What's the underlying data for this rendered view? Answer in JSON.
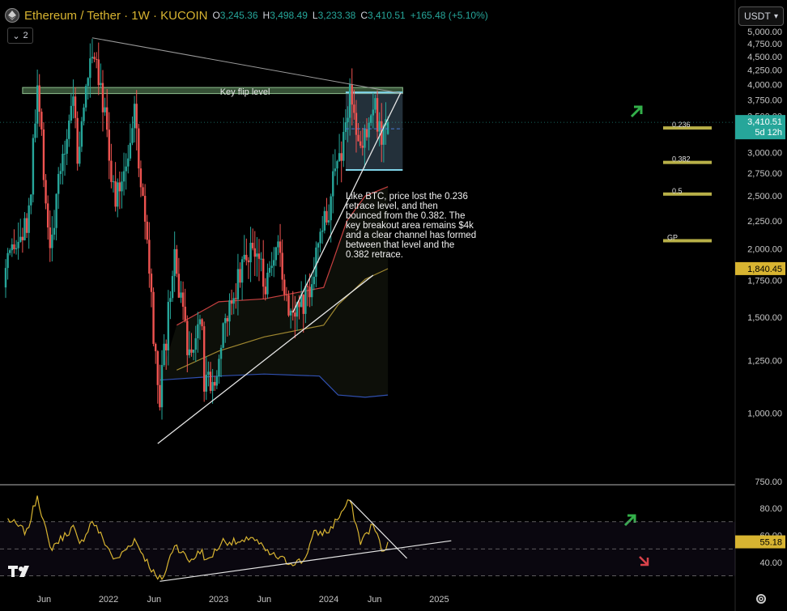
{
  "header": {
    "title": "Ethereum / Tether · 1W · KUCOIN",
    "open_label": "O",
    "open": "3,245.36",
    "high_label": "H",
    "high": "3,498.49",
    "low_label": "L",
    "low": "3,233.38",
    "close_label": "C",
    "close": "3,410.51",
    "change": "+165.48 (+5.10%)",
    "collapse_count": "2",
    "logo_icon": "ethereum-logo-icon"
  },
  "quote_selector": {
    "label": "USDT",
    "icon": "chevron-down-icon"
  },
  "colors": {
    "up": "#26a69a",
    "down": "#ef5350",
    "accent": "#d8b431",
    "channel": "#7fd3e8",
    "rsi_line": "#d8b431",
    "ma_fast": "#c84040",
    "ma_slow": "#a08830",
    "ma_base": "#3050b0"
  },
  "chart_data": [
    {
      "type": "candlestick",
      "title": "Ethereum / Tether · 1W · KUCOIN",
      "x_axis": {
        "labels": [
          "Jun",
          "2022",
          "Jun",
          "2023",
          "Jun",
          "2024",
          "Jun",
          "2025"
        ]
      },
      "y_axis": {
        "scale": "log",
        "range": [
          750,
          5000
        ],
        "ticks": [
          "5,000.00",
          "4,750.00",
          "4,500.00",
          "4,250.00",
          "4,000.00",
          "3,750.00",
          "3,500.00",
          "3,250.00",
          "3,000.00",
          "2,750.00",
          "2,500.00",
          "2,250.00",
          "2,000.00",
          "1,750.00",
          "1,500.00",
          "1,250.00",
          "1,000.00",
          "750.00"
        ]
      },
      "price_labels": [
        {
          "value": "3,410.51",
          "sub": "5d 12h",
          "color": "#26a69a"
        },
        {
          "value": "1,840.45",
          "color": "#d8b431"
        }
      ],
      "series_summary": {
        "last_open": 3245.36,
        "last_high": 3498.49,
        "last_low": 3233.38,
        "last_close": 3410.51,
        "cycle_high": 4870,
        "cycle_low": 880,
        "current": 3410.51
      },
      "anchors": [
        {
          "date": "2021-04-05",
          "price": 2000
        },
        {
          "date": "2021-05-10",
          "price": 3900
        },
        {
          "date": "2021-06-21",
          "price": 2000
        },
        {
          "date": "2021-08-16",
          "price": 3300
        },
        {
          "date": "2021-09-06",
          "price": 3900
        },
        {
          "date": "2021-09-20",
          "price": 2900
        },
        {
          "date": "2021-11-08",
          "price": 4800
        },
        {
          "date": "2021-12-06",
          "price": 4100
        },
        {
          "date": "2022-01-24",
          "price": 2400
        },
        {
          "date": "2022-03-28",
          "price": 3500
        },
        {
          "date": "2022-05-09",
          "price": 2000
        },
        {
          "date": "2022-06-13",
          "price": 1080
        },
        {
          "date": "2022-06-20",
          "price": 1050
        },
        {
          "date": "2022-08-08",
          "price": 1950
        },
        {
          "date": "2022-09-19",
          "price": 1300
        },
        {
          "date": "2022-11-07",
          "price": 1550
        },
        {
          "date": "2022-11-14",
          "price": 1150
        },
        {
          "date": "2022-12-26",
          "price": 1200
        },
        {
          "date": "2023-02-13",
          "price": 1650
        },
        {
          "date": "2023-04-17",
          "price": 2050
        },
        {
          "date": "2023-06-12",
          "price": 1700
        },
        {
          "date": "2023-07-17",
          "price": 1950
        },
        {
          "date": "2023-08-21",
          "price": 1600
        },
        {
          "date": "2023-10-09",
          "price": 1570
        },
        {
          "date": "2023-12-25",
          "price": 2300
        },
        {
          "date": "2024-02-26",
          "price": 3350
        },
        {
          "date": "2024-03-11",
          "price": 3950
        },
        {
          "date": "2024-04-15",
          "price": 3000
        },
        {
          "date": "2024-05-27",
          "price": 3850
        },
        {
          "date": "2024-06-24",
          "price": 3050
        },
        {
          "date": "2024-07-15",
          "price": 3410.51
        }
      ],
      "trendlines": [
        {
          "from": {
            "date": "2021-11-08",
            "price": 4870
          },
          "to": {
            "date": "2024-09-02",
            "price": 3850
          }
        },
        {
          "from": {
            "date": "2022-06-13",
            "price": 880
          },
          "to": {
            "date": "2024-05-27",
            "price": 1790
          }
        },
        {
          "from": {
            "date": "2023-09-04",
            "price": 1530
          },
          "to": {
            "date": "2024-08-26",
            "price": 3860
          }
        }
      ],
      "zones": [
        {
          "label": "Key flip level",
          "price_range": [
            3850,
            3950
          ],
          "date_range": [
            "2021-03-22",
            "2024-09-02"
          ]
        }
      ],
      "channel": {
        "top": 3870,
        "bottom": 2790,
        "date_range": [
          "2024-02-26",
          "2024-09-02"
        ]
      },
      "fib_levels": [
        {
          "label": "0.236",
          "price": 3330
        },
        {
          "label": "0.382",
          "price": 2880
        },
        {
          "label": "0.5",
          "price": 2520
        },
        {
          "label": "GP",
          "price": 2070
        }
      ],
      "moving_averages": [
        {
          "color": "#c84040",
          "points": [
            [
              "2022-08-15",
              1450
            ],
            [
              "2023-01-01",
              1600
            ],
            [
              "2023-06-01",
              1620
            ],
            [
              "2023-12-15",
              1700
            ],
            [
              "2024-01-15",
              1900
            ],
            [
              "2024-03-01",
              2250
            ],
            [
              "2024-05-01",
              2500
            ],
            [
              "2024-07-15",
              2600
            ]
          ]
        },
        {
          "color": "#a08830",
          "points": [
            [
              "2022-08-15",
              1200
            ],
            [
              "2023-01-01",
              1300
            ],
            [
              "2023-06-01",
              1380
            ],
            [
              "2023-12-15",
              1450
            ],
            [
              "2024-02-01",
              1580
            ],
            [
              "2024-05-01",
              1760
            ],
            [
              "2024-07-15",
              1840
            ]
          ]
        },
        {
          "color": "#3050b0",
          "points": [
            [
              "2022-06-20",
              1150
            ],
            [
              "2023-01-01",
              1170
            ],
            [
              "2023-06-01",
              1180
            ],
            [
              "2023-12-01",
              1170
            ],
            [
              "2024-02-01",
              1080
            ],
            [
              "2024-05-01",
              1070
            ],
            [
              "2024-07-15",
              1080
            ]
          ]
        }
      ],
      "annotation": "Like BTC, price lost the 0.236 retrace level, and then bounced from the 0.382. The key breakout area remains $4k and a clear channel has formed between that level and the 0.382 retrace."
    },
    {
      "type": "line",
      "y_axis": {
        "range": [
          25,
          95
        ],
        "ticks": [
          "80.00",
          "60.00",
          "40.00"
        ]
      },
      "bands": {
        "upper": 70,
        "lower": 30,
        "mid": 50
      },
      "last_value": "55.18",
      "anchors": [
        {
          "date": "2021-02-01",
          "value": 72
        },
        {
          "date": "2021-04-05",
          "value": 62
        },
        {
          "date": "2021-05-10",
          "value": 90
        },
        {
          "date": "2021-06-21",
          "value": 50
        },
        {
          "date": "2021-09-06",
          "value": 66
        },
        {
          "date": "2021-09-27",
          "value": 52
        },
        {
          "date": "2021-11-08",
          "value": 71
        },
        {
          "date": "2022-01-24",
          "value": 41
        },
        {
          "date": "2022-03-28",
          "value": 57
        },
        {
          "date": "2022-06-13",
          "value": 27
        },
        {
          "date": "2022-07-04",
          "value": 30
        },
        {
          "date": "2022-08-08",
          "value": 54
        },
        {
          "date": "2022-09-26",
          "value": 41
        },
        {
          "date": "2022-11-07",
          "value": 49
        },
        {
          "date": "2022-11-21",
          "value": 40
        },
        {
          "date": "2023-01-16",
          "value": 56
        },
        {
          "date": "2023-03-27",
          "value": 54
        },
        {
          "date": "2023-04-17",
          "value": 60
        },
        {
          "date": "2023-06-12",
          "value": 47
        },
        {
          "date": "2023-08-21",
          "value": 40
        },
        {
          "date": "2023-10-09",
          "value": 41
        },
        {
          "date": "2023-11-13",
          "value": 61
        },
        {
          "date": "2024-01-01",
          "value": 63
        },
        {
          "date": "2024-03-11",
          "value": 86
        },
        {
          "date": "2024-04-15",
          "value": 55
        },
        {
          "date": "2024-05-27",
          "value": 68
        },
        {
          "date": "2024-07-01",
          "value": 46
        },
        {
          "date": "2024-07-15",
          "value": 55.18
        }
      ],
      "trendlines": [
        {
          "from": {
            "date": "2022-06-20",
            "value": 26
          },
          "to": {
            "date": "2025-02-10",
            "value": 56
          }
        },
        {
          "from": {
            "date": "2024-03-11",
            "value": 86
          },
          "to": {
            "date": "2024-09-16",
            "value": 43
          }
        }
      ]
    }
  ],
  "branding": {
    "logo_icon": "tradingview-logo-icon",
    "settings_icon": "gear-icon"
  }
}
